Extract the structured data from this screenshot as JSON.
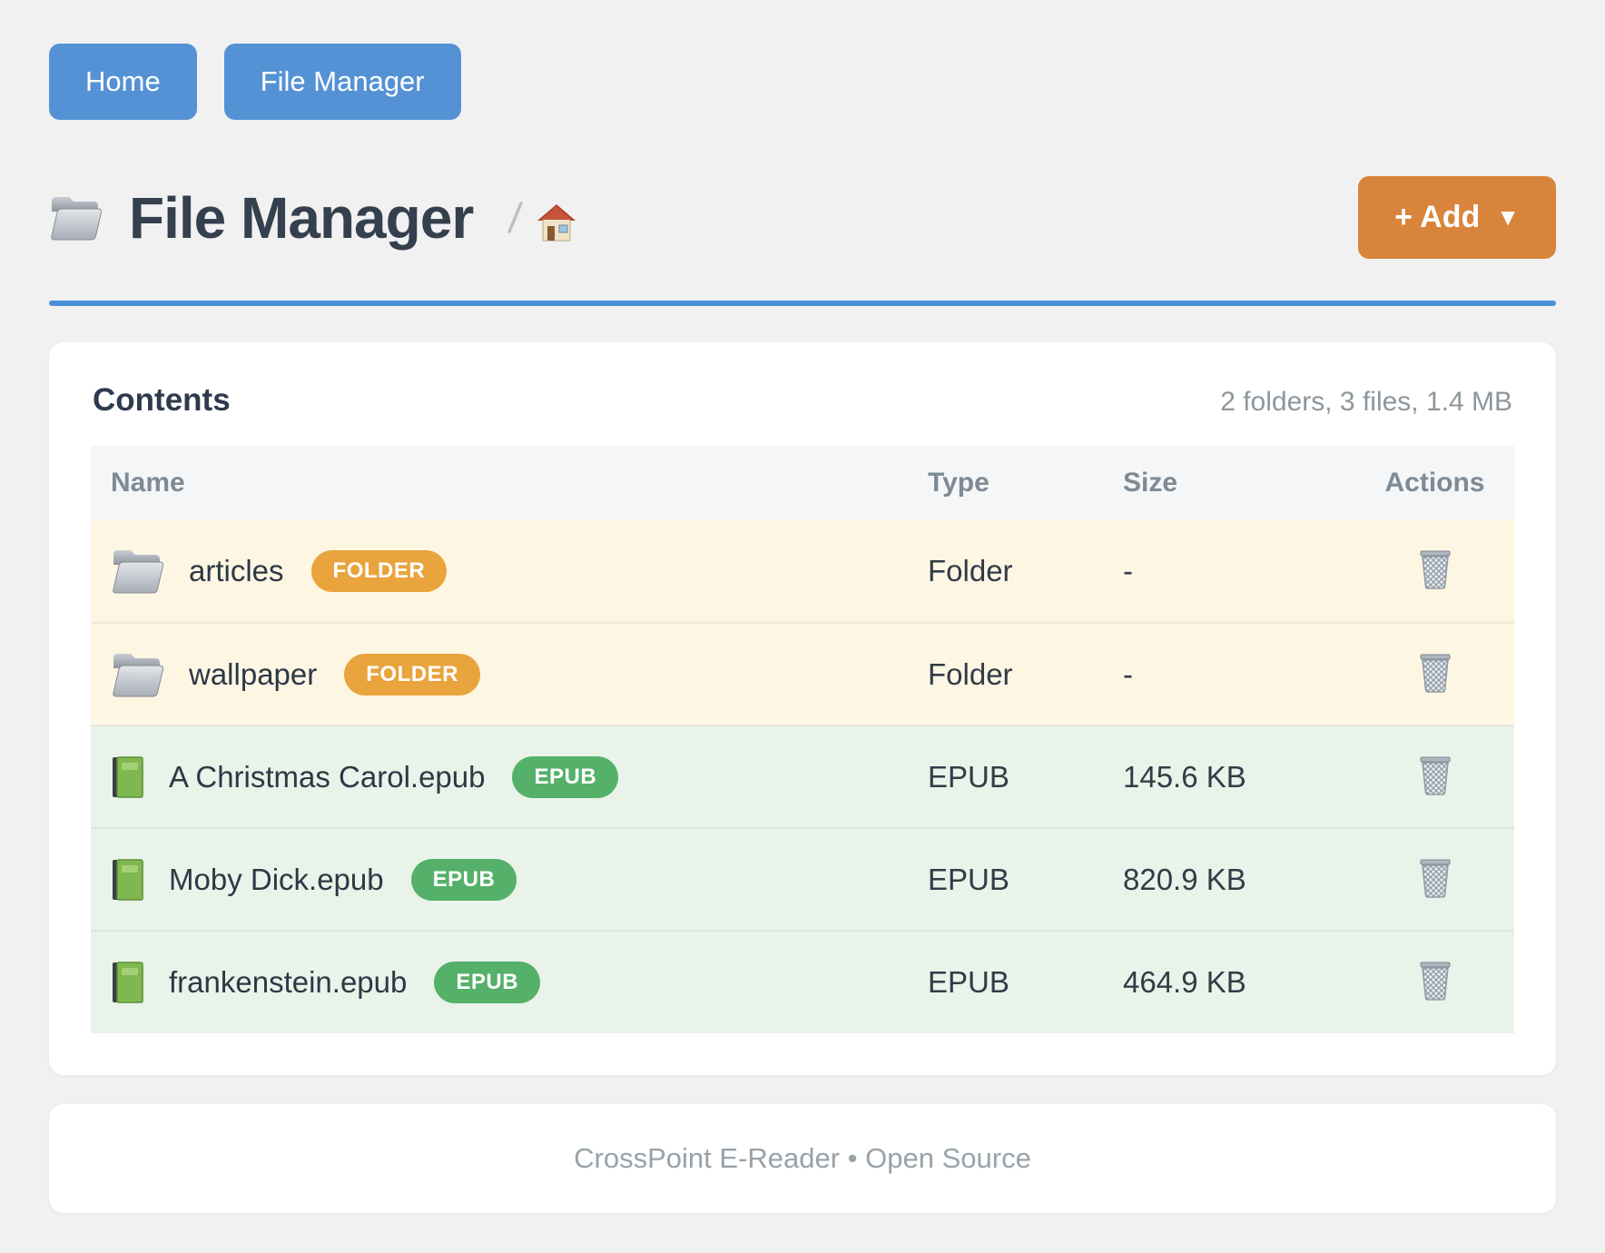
{
  "nav": {
    "home_label": "Home",
    "file_manager_label": "File Manager"
  },
  "header": {
    "title": "File Manager",
    "title_icon": "folder-icon",
    "breadcrumb_separator": "/",
    "breadcrumb_home_icon": "home-icon",
    "add_button_label": "+ Add",
    "add_button_caret": "▼"
  },
  "panel": {
    "title": "Contents",
    "summary": "2 folders, 3 files, 1.4 MB",
    "table": {
      "columns": [
        "Name",
        "Type",
        "Size",
        "Actions"
      ],
      "rows": [
        {
          "name": "articles",
          "icon": "folder-icon",
          "badge": "FOLDER",
          "badge_color": "#e9a43d",
          "kind": "folder",
          "type": "Folder",
          "size": "-",
          "action_icon": "trash-icon"
        },
        {
          "name": "wallpaper",
          "icon": "folder-icon",
          "badge": "FOLDER",
          "badge_color": "#e9a43d",
          "kind": "folder",
          "type": "Folder",
          "size": "-",
          "action_icon": "trash-icon"
        },
        {
          "name": "A Christmas Carol.epub",
          "icon": "book-icon",
          "badge": "EPUB",
          "badge_color": "#55b169",
          "kind": "epub",
          "type": "EPUB",
          "size": "145.6 KB",
          "action_icon": "trash-icon"
        },
        {
          "name": "Moby Dick.epub",
          "icon": "book-icon",
          "badge": "EPUB",
          "badge_color": "#55b169",
          "kind": "epub",
          "type": "EPUB",
          "size": "820.9 KB",
          "action_icon": "trash-icon"
        },
        {
          "name": "frankenstein.epub",
          "icon": "book-icon",
          "badge": "EPUB",
          "badge_color": "#55b169",
          "kind": "epub",
          "type": "EPUB",
          "size": "464.9 KB",
          "action_icon": "trash-icon"
        }
      ]
    }
  },
  "footer": {
    "text": "CrossPoint E-Reader • Open Source"
  },
  "colors": {
    "accent_blue": "#5592d5",
    "rule_blue": "#4b90d7",
    "accent_orange": "#d9843c",
    "badge_folder": "#e9a43d",
    "badge_epub": "#55b169",
    "row_folder_bg": "#fdf6e3",
    "row_epub_bg": "#e9f3e9",
    "page_bg": "#f1f1f2"
  }
}
